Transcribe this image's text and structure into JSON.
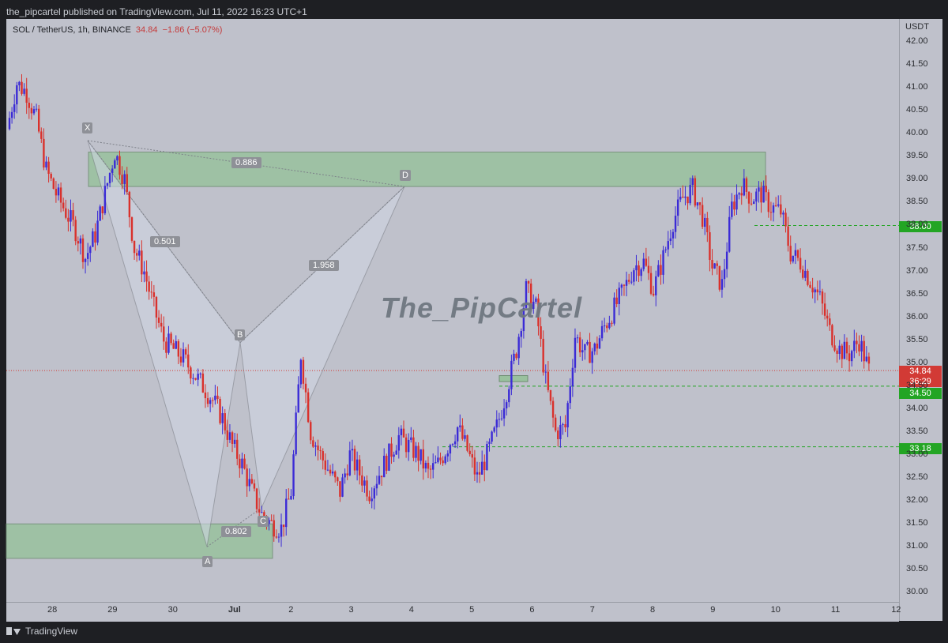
{
  "header": {
    "published_text": "the_pipcartel published on TradingView.com, Jul 11, 2022 16:23 UTC+1"
  },
  "symbol": {
    "name": "SOL / TetherUS, 1h, BINANCE",
    "price": "34.84",
    "change": "−1.86 (−5.07%)"
  },
  "axis": {
    "currency": "USDT"
  },
  "watermark": "The_PipCartel",
  "footer": {
    "brand": "TradingView"
  },
  "colors": {
    "bull": "#3b2bd6",
    "bear": "#d9312c",
    "zone": "#99c19e",
    "pattern": "#d2d8e6",
    "tag_green": "#23a524",
    "tag_red": "#d23a35"
  },
  "price_tags": {
    "current": "34.84",
    "countdown": "36:29",
    "level_a": "34.50",
    "level_b": "33.18",
    "level_c": "38.00"
  },
  "pattern": {
    "points": {
      "X": "X",
      "A": "A",
      "B": "B",
      "C": "C",
      "D": "D"
    },
    "ratios": {
      "XB": "0.501",
      "AC": "0.802",
      "BD": "1.958",
      "XD": "0.886"
    }
  },
  "chart_data": {
    "type": "line",
    "title": "SOL / TetherUS, 1h, BINANCE",
    "ylabel": "USDT",
    "ylim": [
      29.8,
      42.5
    ],
    "yticks": [
      "42.00",
      "41.50",
      "41.00",
      "40.50",
      "40.00",
      "39.50",
      "39.00",
      "38.50",
      "38.00",
      "37.50",
      "37.00",
      "36.50",
      "36.00",
      "35.50",
      "35.00",
      "34.50",
      "34.00",
      "33.50",
      "33.00",
      "32.50",
      "32.00",
      "31.50",
      "31.00",
      "30.50",
      "30.00"
    ],
    "xticks": [
      "28",
      "29",
      "30",
      "Jul",
      "2",
      "3",
      "4",
      "5",
      "6",
      "7",
      "8",
      "9",
      "10",
      "11",
      "12"
    ],
    "series": [
      {
        "name": "SOL/USDT 1h close",
        "values": [
          40.1,
          41.1,
          40.9,
          40.3,
          39.2,
          38.7,
          38.3,
          37.9,
          37.3,
          37.8,
          38.7,
          39.6,
          39.0,
          37.5,
          37.0,
          36.2,
          35.5,
          35.3,
          35.1,
          34.8,
          34.5,
          34.2,
          33.8,
          33.2,
          32.8,
          32.2,
          31.7,
          31.5,
          31.4,
          32.2,
          35.2,
          33.5,
          33.0,
          32.6,
          32.2,
          33.0,
          32.6,
          32.2,
          32.6,
          33.0,
          33.4,
          33.2,
          33.0,
          32.6,
          32.8,
          33.2,
          33.6,
          33.1,
          32.5,
          33.0,
          33.6,
          34.4,
          35.3,
          36.6,
          36.2,
          34.6,
          33.5,
          33.6,
          35.6,
          35.2,
          35.3,
          35.8,
          36.2,
          36.6,
          37.1,
          37.2,
          36.6,
          37.3,
          38.1,
          38.6,
          38.8,
          38.2,
          37.1,
          36.7,
          38.4,
          38.9,
          38.6,
          38.7,
          38.4,
          38.3,
          37.4,
          37.2,
          36.8,
          36.4,
          35.7,
          35.3,
          35.2,
          35.5,
          34.84
        ]
      }
    ]
  }
}
